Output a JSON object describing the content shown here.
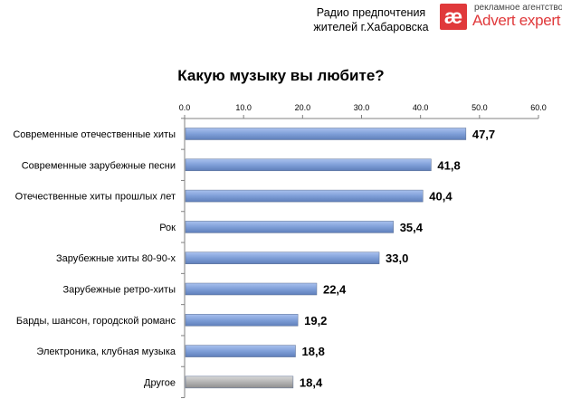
{
  "header": {
    "line1": "Радио предпочтения",
    "line2": "жителей г.Хабаровска"
  },
  "logo": {
    "mark": "æ",
    "tagline": "рекламное агентство",
    "name": "Advert expert",
    "color": "#e0393b"
  },
  "chart_data": {
    "type": "bar",
    "orientation": "horizontal",
    "title": "Какую музыку вы любите?",
    "categories": [
      "Современные отечественные хиты",
      "Современные зарубежные песни",
      "Отечественные хиты прошлых лет",
      "Рок",
      "Зарубежные хиты 80-90-х",
      "Зарубежные ретро-хиты",
      "Барды, шансон, городской романс",
      "Электроника, клубная музыка",
      "Другое"
    ],
    "values": [
      47.7,
      41.8,
      40.4,
      35.4,
      33.0,
      22.4,
      19.2,
      18.8,
      18.4
    ],
    "value_labels": [
      "47,7",
      "41,8",
      "40,4",
      "35,4",
      "33,0",
      "22,4",
      "19,2",
      "18,8",
      "18,4"
    ],
    "xlim": [
      0,
      60
    ],
    "ticks": [
      0,
      10,
      20,
      30,
      40,
      50,
      60
    ],
    "tick_labels": [
      "0.0",
      "10.0",
      "20.0",
      "30.0",
      "40.0",
      "50.0",
      "60.0"
    ],
    "axis_position": "top",
    "grid": false,
    "bar_color": "#7f9fd8",
    "bar_color_other": "#b3b3b3"
  }
}
